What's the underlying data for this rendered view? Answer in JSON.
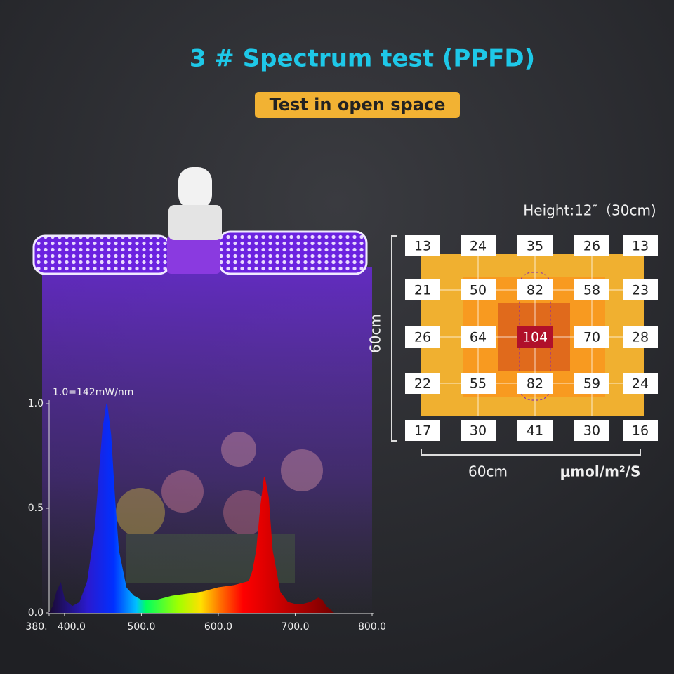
{
  "header": {
    "title": "3 # Spectrum test (PPFD)",
    "badge": "Test in open space"
  },
  "ppfd": {
    "height_label": "Height:12″（30cm)",
    "side_label": "60cm",
    "bottom_label": "60cm",
    "unit": "μmol/m²/S",
    "rows": [
      [
        13,
        24,
        35,
        26,
        13
      ],
      [
        21,
        50,
        82,
        58,
        23
      ],
      [
        26,
        64,
        104,
        70,
        28
      ],
      [
        22,
        55,
        82,
        59,
        24
      ],
      [
        17,
        30,
        41,
        30,
        16
      ]
    ]
  },
  "chart_data": {
    "type": "area",
    "annotation": "1.0=142mW/nm",
    "x": [
      380,
      385,
      390,
      395,
      400,
      410,
      420,
      430,
      440,
      445,
      450,
      455,
      460,
      465,
      470,
      480,
      490,
      500,
      520,
      540,
      560,
      580,
      600,
      620,
      630,
      640,
      645,
      650,
      655,
      660,
      665,
      670,
      680,
      690,
      700,
      710,
      720,
      730,
      735,
      740,
      750
    ],
    "values": [
      0,
      0.03,
      0.1,
      0.14,
      0.06,
      0.03,
      0.05,
      0.15,
      0.4,
      0.65,
      0.88,
      1.0,
      0.85,
      0.55,
      0.3,
      0.12,
      0.08,
      0.06,
      0.06,
      0.08,
      0.09,
      0.1,
      0.12,
      0.13,
      0.14,
      0.15,
      0.2,
      0.3,
      0.5,
      0.65,
      0.55,
      0.3,
      0.1,
      0.05,
      0.04,
      0.04,
      0.05,
      0.07,
      0.06,
      0.03,
      0
    ],
    "xlim": [
      380,
      800
    ],
    "ylim": [
      0,
      1
    ],
    "xticks": [
      {
        "value": 380,
        "label": "380."
      },
      {
        "value": 400,
        "label": "400.0"
      },
      {
        "value": 500,
        "label": "500.0"
      },
      {
        "value": 600,
        "label": "600.0"
      },
      {
        "value": 700,
        "label": "700.0"
      },
      {
        "value": 800,
        "label": "800.0"
      }
    ],
    "yticks": [
      {
        "value": 0,
        "label": "0.0"
      },
      {
        "value": 0.5,
        "label": "0.5"
      },
      {
        "value": 1,
        "label": "1.0"
      }
    ]
  }
}
